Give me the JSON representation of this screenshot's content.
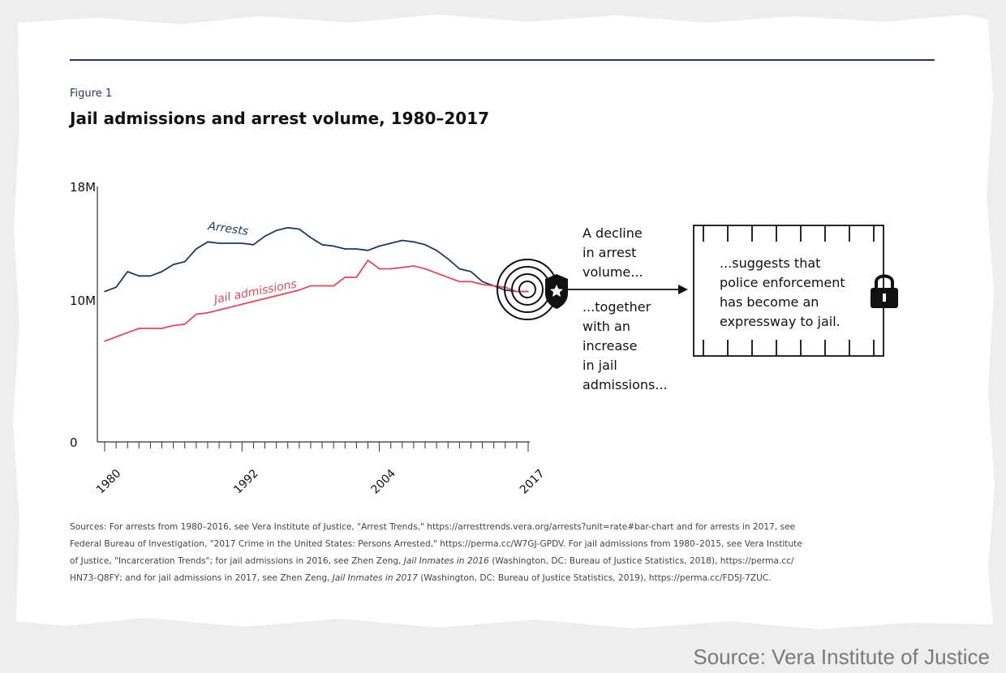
{
  "figure": {
    "label": "Figure 1",
    "title": "Jail admissions and arrest volume, 1980–2017"
  },
  "chart_data": {
    "type": "line",
    "title": "Jail admissions and arrest volume, 1980–2017",
    "xlabel": "",
    "ylabel": "",
    "xlim": [
      1980,
      2017
    ],
    "ylim": [
      0,
      18000000
    ],
    "y_ticks": [
      {
        "value": 0,
        "label": "0"
      },
      {
        "value": 10000000,
        "label": "10M"
      },
      {
        "value": 18000000,
        "label": "18M"
      }
    ],
    "x_tick_labels": [
      {
        "value": 1980,
        "label": "1980"
      },
      {
        "value": 1992,
        "label": "1992"
      },
      {
        "value": 2004,
        "label": "2004"
      },
      {
        "value": 2017,
        "label": "2017"
      }
    ],
    "grid": false,
    "x": [
      1980,
      1981,
      1982,
      1983,
      1984,
      1985,
      1986,
      1987,
      1988,
      1989,
      1990,
      1991,
      1992,
      1993,
      1994,
      1995,
      1996,
      1997,
      1998,
      1999,
      2000,
      2001,
      2002,
      2003,
      2004,
      2005,
      2006,
      2007,
      2008,
      2009,
      2010,
      2011,
      2012,
      2013,
      2014,
      2015,
      2016,
      2017
    ],
    "series": [
      {
        "name": "Arrests",
        "color": "#1f3b5c",
        "values": [
          10.6,
          10.9,
          12.0,
          11.7,
          11.7,
          12.0,
          12.5,
          12.7,
          13.6,
          14.1,
          14.0,
          14.0,
          14.0,
          13.9,
          14.5,
          14.9,
          15.1,
          15.0,
          14.4,
          13.9,
          13.8,
          13.6,
          13.6,
          13.5,
          13.8,
          14.0,
          14.2,
          14.1,
          13.9,
          13.5,
          12.9,
          12.2,
          12.0,
          11.3,
          11.0,
          10.7,
          10.6,
          10.6
        ]
      },
      {
        "name": "Jail admissions",
        "color": "#e04a5a",
        "values": [
          7.1,
          7.4,
          7.7,
          8.0,
          8.0,
          8.0,
          8.2,
          8.3,
          9.0,
          9.1,
          9.3,
          9.5,
          9.7,
          9.9,
          10.1,
          10.3,
          10.5,
          10.7,
          11.0,
          11.0,
          11.0,
          11.6,
          11.6,
          12.8,
          12.2,
          12.2,
          12.3,
          12.4,
          12.2,
          11.9,
          11.6,
          11.3,
          11.3,
          11.1,
          11.0,
          10.9,
          10.6,
          10.6
        ]
      }
    ],
    "annotations": {
      "decline": [
        "A decline",
        "in arrest",
        "volume..."
      ],
      "increase": [
        "...together",
        "with an",
        "increase",
        "in jail",
        "admissions..."
      ],
      "conclusion": [
        "...suggests that",
        "police enforcement",
        "has become an",
        "expressway to jail."
      ]
    }
  },
  "icons": {
    "target": "target-rings-icon",
    "badge": "police-badge-star-icon",
    "lock": "padlock-icon",
    "jail": "jail-cell-bars-icon"
  },
  "sources": {
    "line1": "Sources: For arrests from 1980–2016, see Vera Institute of Justice, \"Arrest Trends,\" https://arresttrends.vera.org/arrests?unit=rate#bar-chart and for arrests in 2017, see",
    "line2": "Federal Bureau of Investigation, \"2017 Crime in the United States: Persons Arrested,\" https://perma.cc/W7GJ-GPDV. For jail admissions from 1980–2015, see Vera Institute",
    "line3a": "of Justice, \"Incarceration Trends\"; for jail admissions in 2016, see Zhen Zeng, ",
    "line3b": "Jail Inmates in 2016",
    "line3c": " (Washington, DC: Bureau of Justice Statistics, 2018), https://perma.cc/",
    "line4a": "HN73-Q8FY; and for jail admissions in 2017, see Zhen Zeng, ",
    "line4b": "Jail Inmates in 2017",
    "line4c": " (Washington, DC: Bureau of Justice Statistics, 2019), https://perma.cc/FD5J-7ZUC."
  },
  "credit": "Source: Vera Institute of Justice"
}
